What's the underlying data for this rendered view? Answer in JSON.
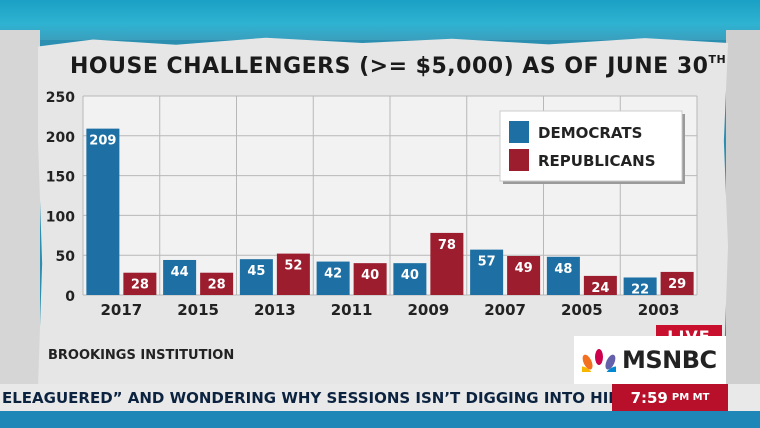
{
  "chart_data": {
    "type": "bar",
    "title": "HOUSE CHALLENGERS (>= $5,000) AS OF JUNE 30",
    "title_suffix": "TH",
    "categories": [
      "2017",
      "2015",
      "2013",
      "2011",
      "2009",
      "2007",
      "2005",
      "2003"
    ],
    "series": [
      {
        "name": "DEMOCRATS",
        "color": "#1e6fa3",
        "values": [
          209,
          44,
          45,
          42,
          40,
          57,
          48,
          22
        ]
      },
      {
        "name": "REPUBLICANS",
        "color": "#9b1d2e",
        "values": [
          28,
          28,
          52,
          40,
          78,
          49,
          24,
          29
        ]
      }
    ],
    "y_ticks": [
      "0",
      "50",
      "100",
      "150",
      "200",
      "250"
    ],
    "ylim": [
      0,
      250
    ],
    "grid": true,
    "legend_position": "top-right"
  },
  "source": "BROOKINGS INSTITUTION",
  "ticker": {
    "text": "ELEAGUERED” AND WONDERING WHY SESSIONS ISN’T DIGGING INTO HILLARY C",
    "time": "7:59",
    "time_suffix": "PM MT"
  },
  "network": {
    "live_label": "LIVE",
    "logo_text": "MSNBC"
  }
}
